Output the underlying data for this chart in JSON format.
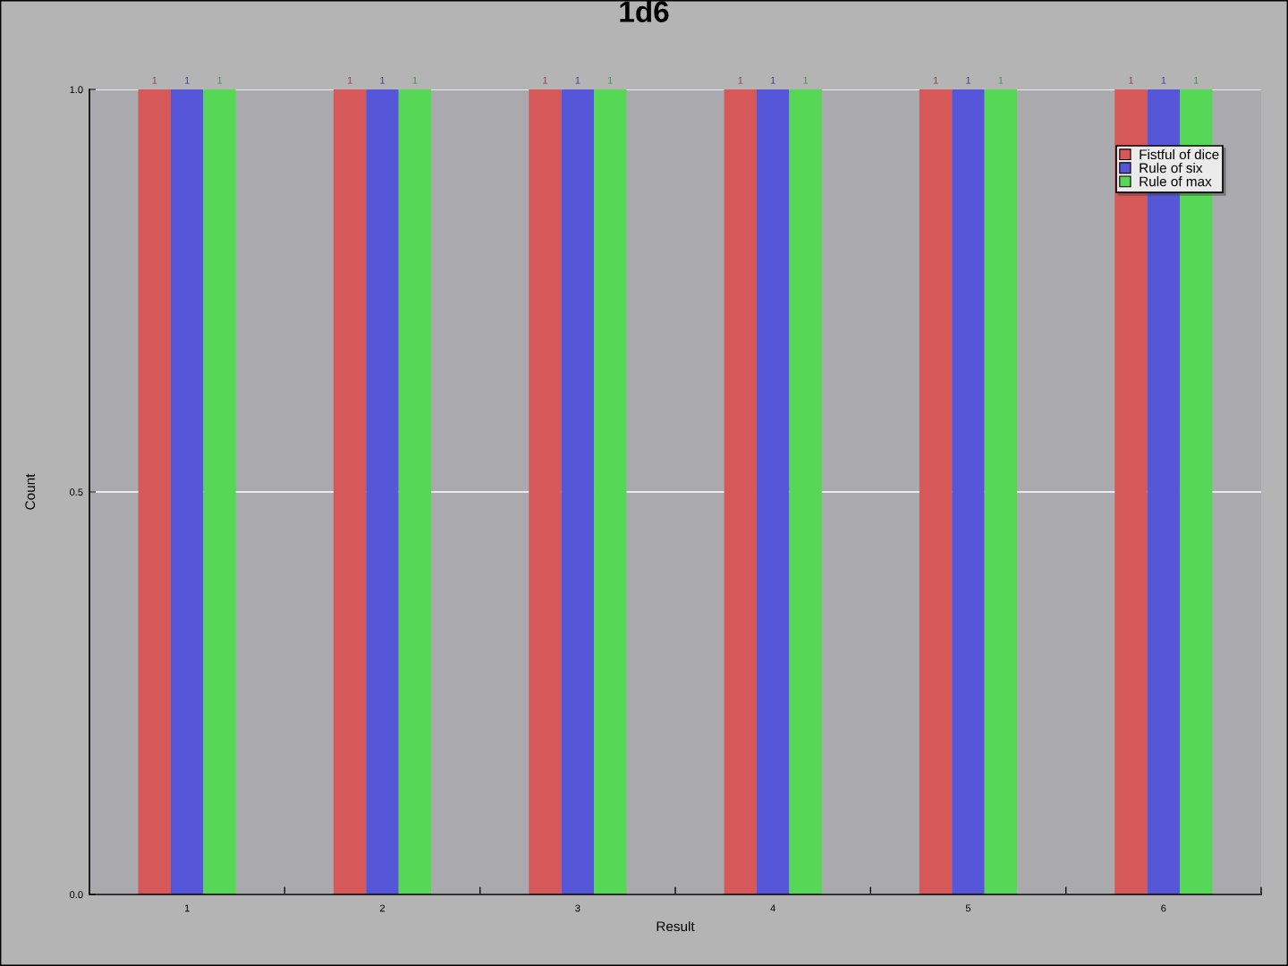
{
  "chart_data": {
    "type": "bar",
    "title": "1d6",
    "xlabel": "Result",
    "ylabel": "Count",
    "categories": [
      "1",
      "2",
      "3",
      "4",
      "5",
      "6"
    ],
    "series": [
      {
        "name": "Fistful of dice",
        "color": "#d65858",
        "values": [
          1,
          1,
          1,
          1,
          1,
          1
        ]
      },
      {
        "name": "Rule of six",
        "color": "#5656d8",
        "values": [
          1,
          1,
          1,
          1,
          1,
          1
        ]
      },
      {
        "name": "Rule of max",
        "color": "#56d856",
        "values": [
          1,
          1,
          1,
          1,
          1,
          1
        ]
      }
    ],
    "ylim": [
      0,
      1
    ],
    "yticks": [
      {
        "value": 0,
        "label": "0.0"
      },
      {
        "value": 0.5,
        "label": "0.5"
      },
      {
        "value": 1,
        "label": "1.0"
      }
    ],
    "grid": "y",
    "legend": "top right",
    "data_labels": true
  }
}
